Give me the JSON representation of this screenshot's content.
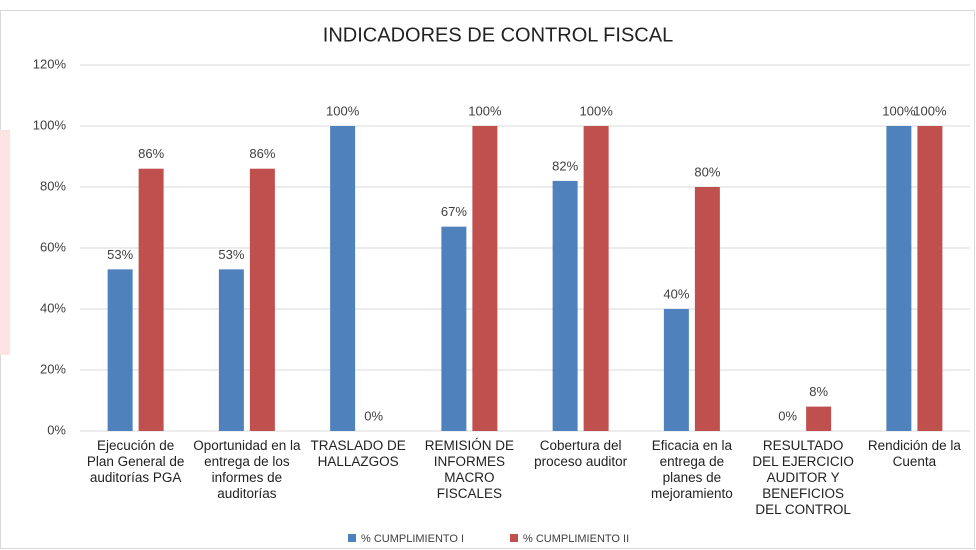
{
  "chart_data": {
    "type": "bar",
    "title": "INDICADORES DE CONTROL FISCAL",
    "categories": [
      "Ejecución de Plan General de auditorías PGA",
      "Oportunidad en la entrega de los informes de auditorías",
      "TRASLADO DE HALLAZGOS",
      "REMISIÓN DE INFORMES MACRO FISCALES",
      "Cobertura del proceso auditor",
      "Eficacia en la entrega de planes de mejoramiento",
      "RESULTADO DEL EJERCICIO AUDITOR Y BENEFICIOS DEL CONTROL",
      "Rendición de la Cuenta"
    ],
    "series": [
      {
        "name": "% CUMPLIMIENTO I",
        "color": "#4f81bd",
        "values": [
          53,
          53,
          100,
          67,
          82,
          40,
          0,
          100
        ],
        "value_labels": [
          "53%",
          "53%",
          "100%",
          "67%",
          "82%",
          "40%",
          "0%",
          "100%"
        ]
      },
      {
        "name": "% CUMPLIMIENTO II",
        "color": "#c0504d",
        "values": [
          86,
          86,
          0,
          100,
          100,
          80,
          8,
          100
        ],
        "value_labels": [
          "86%",
          "86%",
          "0%",
          "100%",
          "100%",
          "80%",
          "8%",
          "100%"
        ]
      }
    ],
    "ylim": [
      0,
      120
    ],
    "yticks": [
      {
        "value": 0,
        "label": "0%"
      },
      {
        "value": 20,
        "label": "20%"
      },
      {
        "value": 40,
        "label": "40%"
      },
      {
        "value": 60,
        "label": "60%"
      },
      {
        "value": 80,
        "label": "80%"
      },
      {
        "value": 100,
        "label": "100%"
      },
      {
        "value": 120,
        "label": "120%"
      }
    ],
    "grid": true,
    "legend": "bottom"
  }
}
